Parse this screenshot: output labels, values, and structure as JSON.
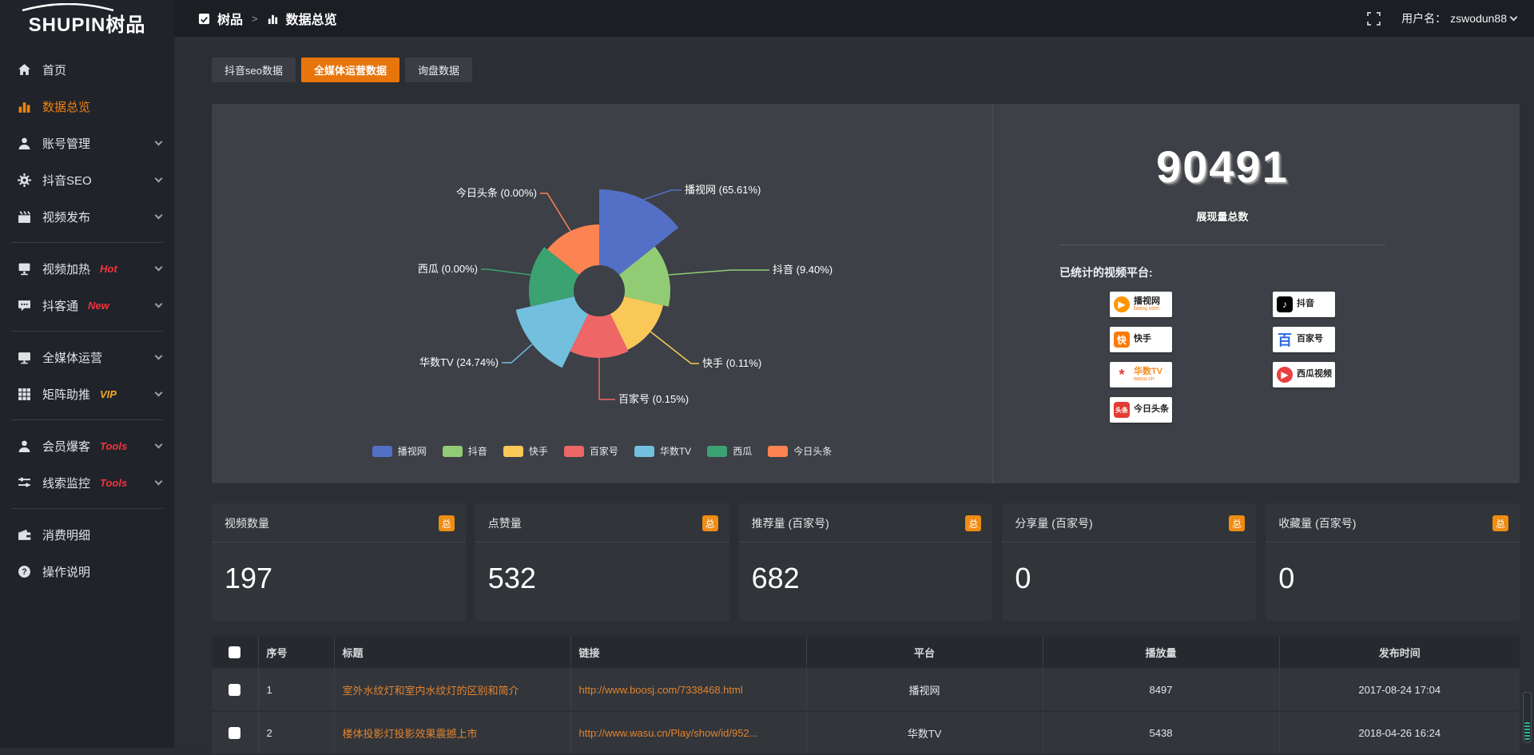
{
  "chrome": {
    "logo_en": "SHUPIN",
    "logo_cn": "树品",
    "breadcrumb": {
      "app": "树品",
      "separator": ">",
      "page": "数据总览"
    },
    "user_label": "用户名：",
    "username": "zswodun88"
  },
  "sidebar": {
    "items": [
      {
        "key": "home",
        "icon": "home",
        "label": "首页"
      },
      {
        "key": "data-overview",
        "icon": "chart",
        "label": "数据总览",
        "active": true
      },
      {
        "key": "account-management",
        "icon": "user",
        "label": "账号管理",
        "chevron": true
      },
      {
        "key": "douyin-seo",
        "icon": "gear",
        "label": "抖音SEO",
        "chevron": true
      },
      {
        "key": "video-publish",
        "icon": "publish",
        "label": "视频发布",
        "chevron": true,
        "divider_after": true
      },
      {
        "key": "video-heating",
        "icon": "heat",
        "label": "视频加热",
        "tag": "Hot",
        "tag_color": "#f3343e",
        "chevron": true
      },
      {
        "key": "douketong",
        "icon": "chat",
        "label": "抖客通",
        "tag": "New",
        "tag_color": "#f3343e",
        "chevron": true,
        "divider_after": true
      },
      {
        "key": "omni-media",
        "icon": "monitor",
        "label": "全媒体运营",
        "chevron": true
      },
      {
        "key": "matrix-boost",
        "icon": "grid",
        "label": "矩阵助推",
        "tag": "VIP",
        "tag_color": "#f5a623",
        "chevron": true,
        "divider_after": true
      },
      {
        "key": "member-baoke",
        "icon": "person",
        "label": "会员爆客",
        "tag": "Tools",
        "tag_color": "#f3343e",
        "chevron": true
      },
      {
        "key": "lead-monitor",
        "icon": "sliders",
        "label": "线索监控",
        "tag": "Tools",
        "tag_color": "#f3343e",
        "chevron": true,
        "divider_after": true
      },
      {
        "key": "consumption-detail",
        "icon": "wallet",
        "label": "消费明细"
      },
      {
        "key": "operation-guide",
        "icon": "question",
        "label": "操作说明"
      }
    ]
  },
  "tabs": [
    {
      "key": "douyin-seo-data",
      "label": "抖音seo数据",
      "active": false
    },
    {
      "key": "omni-media-data",
      "label": "全媒体运营数据",
      "active": true
    },
    {
      "key": "inquiry-data",
      "label": "询盘数据",
      "active": false
    }
  ],
  "chart_data": {
    "type": "pie",
    "subtype": "nightingale-rose",
    "title": "",
    "legend_position": "bottom",
    "inner_radius": 32,
    "items": [
      {
        "name": "播视网",
        "percent": 65.61,
        "label": "播视网 (65.61%)",
        "color": "#5470c6",
        "radius": 127
      },
      {
        "name": "抖音",
        "percent": 9.4,
        "label": "抖音 (9.40%)",
        "color": "#91cc75",
        "radius": 89
      },
      {
        "name": "快手",
        "percent": 0.11,
        "label": "快手 (0.11%)",
        "color": "#fac858",
        "radius": 82
      },
      {
        "name": "百家号",
        "percent": 0.15,
        "label": "百家号 (0.15%)",
        "color": "#ee6666",
        "radius": 84
      },
      {
        "name": "华数TV",
        "percent": 24.74,
        "label": "华数TV (24.74%)",
        "color": "#73c0de",
        "radius": 107
      },
      {
        "name": "西瓜",
        "percent": 0.0,
        "label": "西瓜 (0.00%)",
        "color": "#3ba272",
        "radius": 88
      },
      {
        "name": "今日头条",
        "percent": 0.0,
        "label": "今日头条 (0.00%)",
        "color": "#fc8452",
        "radius": 83
      }
    ]
  },
  "summary": {
    "total_value": "90491",
    "total_label": "展现量总数",
    "platforms_label": "已统计的视频平台:",
    "platforms_left": [
      {
        "key": "boosj",
        "name": "播视网",
        "sub": "boosj.com",
        "glyph": "▶",
        "icon_bg": "#ff9600",
        "icon_fg": "#ffffff",
        "round": true
      },
      {
        "key": "kuaishou",
        "name": "快手",
        "glyph": "快",
        "icon_bg": "#ff7a00",
        "icon_fg": "#ffffff"
      },
      {
        "key": "wasu-tv",
        "name": "华数TV",
        "sub": "wasu.cn",
        "name_color": "#f5891d",
        "glyph": "*",
        "icon_bg": "transparent",
        "icon_fg": "#e23c34",
        "big": true
      },
      {
        "key": "toutiao",
        "name": "今日头条",
        "glyph": "头条",
        "icon_bg": "#e23c34",
        "icon_fg": "#ffffff",
        "tiny": true
      }
    ],
    "platforms_right": [
      {
        "key": "douyin",
        "name": "抖音",
        "glyph": "♪",
        "icon_bg": "#000000",
        "icon_fg": "#ffffff"
      },
      {
        "key": "baijiahao",
        "name": "百家号",
        "glyph": "百",
        "icon_bg": "transparent",
        "icon_fg": "#2d6ae0",
        "big": true
      },
      {
        "key": "xigua",
        "name": "西瓜视频",
        "glyph": "▶",
        "icon_bg": "#e84040",
        "icon_fg": "#ffffff",
        "round": true
      }
    ]
  },
  "stat_cards": [
    {
      "key": "video-count",
      "label": "视频数量",
      "badge": "总",
      "value": "197"
    },
    {
      "key": "like-count",
      "label": "点赞量",
      "badge": "总",
      "value": "532"
    },
    {
      "key": "recommend-count",
      "label": "推荐量 (百家号)",
      "badge": "总",
      "value": "682"
    },
    {
      "key": "share-count",
      "label": "分享量 (百家号)",
      "badge": "总",
      "value": "0"
    },
    {
      "key": "favorite-count",
      "label": "收藏量 (百家号)",
      "badge": "总",
      "value": "0"
    }
  ],
  "table": {
    "headers": [
      "",
      "序号",
      "标题",
      "链接",
      "平台",
      "播放量",
      "发布时间"
    ],
    "rows": [
      {
        "num": "1",
        "title": "室外水纹灯和室内水纹灯的区别和简介",
        "link": "http://www.boosj.com/7338468.html",
        "platform": "播视网",
        "views": "8497",
        "time": "2017-08-24 17:04"
      },
      {
        "num": "2",
        "title": "楼体投影灯投影效果震撼上市",
        "link": "http://www.wasu.cn/Play/show/id/952...",
        "platform": "华数TV",
        "views": "5438",
        "time": "2018-04-26 16:24"
      }
    ]
  },
  "colors": {
    "accent": "#e8750c",
    "badge": "#ef8c13",
    "link_text": "#e08431",
    "active_menu": "#ef830d"
  }
}
